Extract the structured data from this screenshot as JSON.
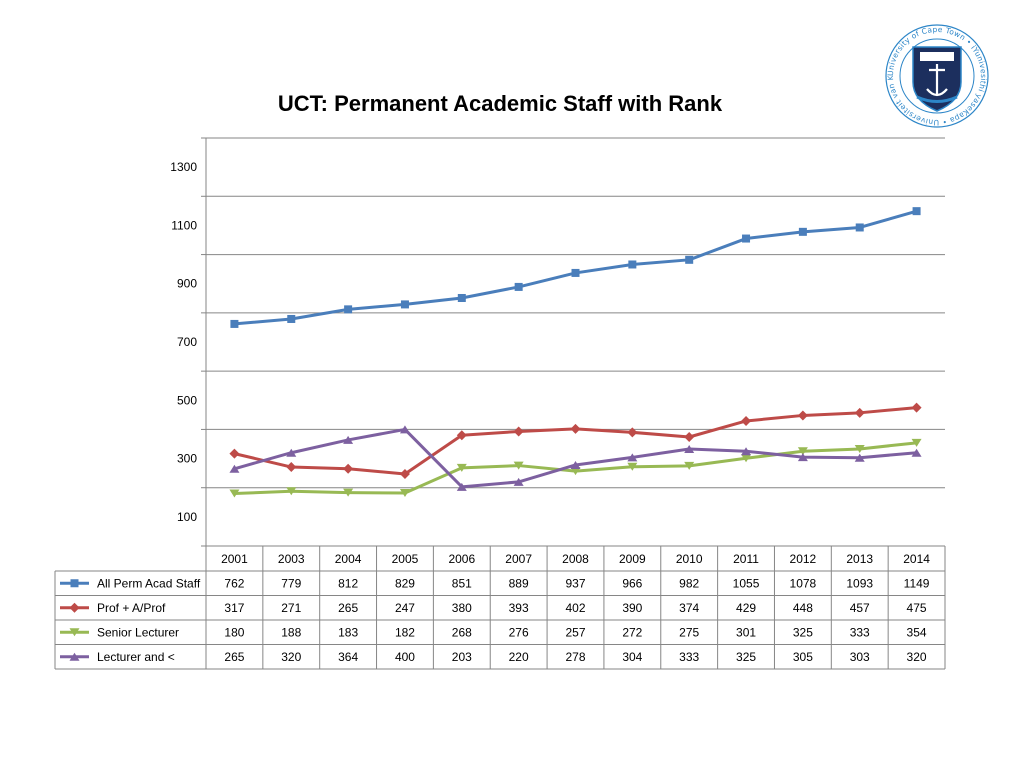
{
  "chart_data": {
    "type": "line",
    "title": "UCT: Permanent Academic Staff with Rank",
    "xlabel": "",
    "ylabel": "",
    "categories": [
      "2001",
      "2003",
      "2004",
      "2005",
      "2006",
      "2007",
      "2008",
      "2009",
      "2010",
      "2011",
      "2012",
      "2013",
      "2014"
    ],
    "ylim": [
      0,
      1400
    ],
    "yticks": [
      100,
      300,
      500,
      700,
      900,
      1100,
      1300
    ],
    "grid": true,
    "legend": "data table below chart",
    "series": [
      {
        "name": "All Perm Acad Staff",
        "color": "#4a7ebb",
        "marker": "square",
        "values": [
          762,
          779,
          812,
          829,
          851,
          889,
          937,
          966,
          982,
          1055,
          1078,
          1093,
          1149
        ]
      },
      {
        "name": "Prof + A/Prof",
        "color": "#be4b48",
        "marker": "diamond",
        "values": [
          317,
          271,
          265,
          247,
          380,
          393,
          402,
          390,
          374,
          429,
          448,
          457,
          475
        ]
      },
      {
        "name": "Senior Lecturer",
        "color": "#98b954",
        "marker": "triangle-down",
        "values": [
          180,
          188,
          183,
          182,
          268,
          276,
          257,
          272,
          275,
          301,
          325,
          333,
          354
        ]
      },
      {
        "name": "Lecturer and <",
        "color": "#7d60a0",
        "marker": "triangle-up",
        "values": [
          265,
          320,
          364,
          400,
          203,
          220,
          278,
          304,
          333,
          325,
          305,
          303,
          320
        ]
      }
    ]
  },
  "logo": {
    "name": "University of Cape Town crest",
    "ring_text": "University of Cape Town • iYunivesithi yaseKapa • Universiteit van Kaapstad •",
    "colors": {
      "ring": "#2d86c8",
      "shield": "#1c2f5e",
      "anchor": "#ffffff"
    }
  }
}
